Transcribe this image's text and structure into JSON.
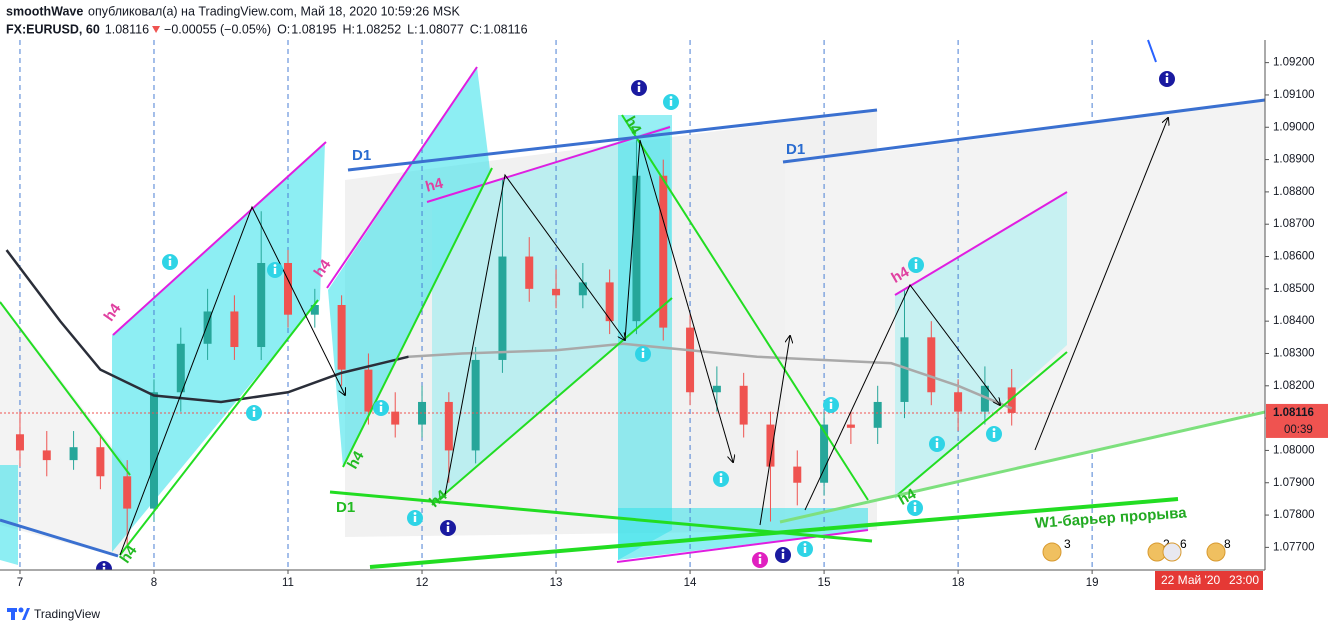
{
  "chart_data": {
    "type": "candlestick",
    "title": "smoothWave",
    "subtitle": "опубликовал(а) на TradingView.com, Май 18, 2020 10:59:26 MSK",
    "symbol": "FX:EURUSD, 60",
    "header_price": 1.08116,
    "change": "−0.00055 (−0.05%)",
    "ohlc": [
      {
        "label": "O:",
        "value": 1.08195
      },
      {
        "label": "H:",
        "value": 1.08252
      },
      {
        "label": "L:",
        "value": 1.08077
      },
      {
        "label": "C:",
        "value": 1.08116
      }
    ],
    "up_color": "#26a69a",
    "down_color": "#ef5350",
    "x": [
      0,
      0.2,
      0.4,
      0.6,
      0.8,
      1,
      1.2,
      1.4,
      1.6,
      1.8,
      2,
      2.2,
      2.4,
      2.6,
      2.8,
      3,
      3.2,
      3.4,
      3.6,
      3.8,
      4,
      4.2,
      4.4,
      4.6,
      4.8,
      5,
      5.2,
      5.4,
      5.6,
      5.8,
      6,
      6.2,
      6.4,
      6.6,
      6.8,
      7,
      7.2,
      7.4
    ],
    "open": [
      1.0805,
      1.08,
      1.0797,
      1.0801,
      1.0792,
      1.0782,
      1.0818,
      1.0833,
      1.0843,
      1.0832,
      1.0858,
      1.0842,
      1.0845,
      1.0825,
      1.0812,
      1.0808,
      1.0815,
      1.08,
      1.0828,
      1.086,
      1.085,
      1.0848,
      1.0852,
      1.084,
      1.0885,
      1.0838,
      1.0818,
      1.082,
      1.0808,
      1.0795,
      1.079,
      1.0808,
      1.0807,
      1.0815,
      1.0835,
      1.0818,
      1.0812,
      1.08195
    ],
    "high": [
      1.0812,
      1.0806,
      1.0806,
      1.0805,
      1.0797,
      1.0822,
      1.0838,
      1.085,
      1.0848,
      1.0874,
      1.0862,
      1.085,
      1.0848,
      1.083,
      1.0818,
      1.082,
      1.0818,
      1.0832,
      1.0884,
      1.0866,
      1.0856,
      1.0858,
      1.0856,
      1.0896,
      1.089,
      1.0842,
      1.0826,
      1.0824,
      1.0812,
      1.08,
      1.0812,
      1.0812,
      1.082,
      1.085,
      1.084,
      1.0822,
      1.0826,
      1.08252
    ],
    "low": [
      1.0795,
      1.0792,
      1.0794,
      1.0788,
      1.077,
      1.0778,
      1.0812,
      1.0828,
      1.0828,
      1.0828,
      1.0838,
      1.0838,
      1.082,
      1.0808,
      1.0804,
      1.0804,
      1.079,
      1.0796,
      1.0824,
      1.0846,
      1.0844,
      1.0844,
      1.0836,
      1.0836,
      1.0834,
      1.0814,
      1.0812,
      1.0804,
      1.0778,
      1.0783,
      1.0786,
      1.0802,
      1.0802,
      1.081,
      1.0814,
      1.0806,
      1.0808,
      1.08077
    ],
    "close": [
      1.08,
      1.0797,
      1.0801,
      1.0792,
      1.0782,
      1.0818,
      1.0833,
      1.0843,
      1.0832,
      1.0858,
      1.0842,
      1.0845,
      1.0825,
      1.0812,
      1.0808,
      1.0815,
      1.08,
      1.0828,
      1.086,
      1.085,
      1.0848,
      1.0852,
      1.084,
      1.0885,
      1.0838,
      1.0818,
      1.082,
      1.0808,
      1.0795,
      1.079,
      1.0808,
      1.0807,
      1.0815,
      1.0835,
      1.0818,
      1.0812,
      1.082,
      1.08116
    ],
    "overlays": [
      {
        "color": "#2a2e39",
        "x": [
          -0.1,
          0.3,
          0.6,
          1,
          1.5,
          2,
          2.4,
          2.9
        ],
        "values": [
          1.0862,
          1.084,
          1.0825,
          1.0817,
          1.0815,
          1.0818,
          1.0824,
          1.0829
        ]
      },
      {
        "color": "#a9a9a9",
        "x": [
          2.9,
          3.3,
          4,
          4.5,
          5,
          5.5,
          6,
          6.5,
          7,
          7.4
        ],
        "values": [
          1.0829,
          1.083,
          1.0831,
          1.0833,
          1.0831,
          1.0829,
          1.0828,
          1.0827,
          1.082,
          1.0813
        ]
      }
    ],
    "xlim": [
      -0.149,
      9.29
    ],
    "xticks": [
      {
        "value": 0,
        "label": "7"
      },
      {
        "value": 1,
        "label": "8"
      },
      {
        "value": 2,
        "label": "11"
      },
      {
        "value": 3,
        "label": "12"
      },
      {
        "value": 4,
        "label": "13"
      },
      {
        "value": 5,
        "label": "14"
      },
      {
        "value": 6,
        "label": "15"
      },
      {
        "value": 7,
        "label": "18"
      },
      {
        "value": 8,
        "label": "19"
      }
    ],
    "ylim": [
      1.0763,
      1.0927
    ],
    "yticks": [
      {
        "value": 1.077,
        "label": "1.07700"
      },
      {
        "value": 1.078,
        "label": "1.07800"
      },
      {
        "value": 1.079,
        "label": "1.07900"
      },
      {
        "value": 1.08,
        "label": "1.08000"
      },
      {
        "value": 1.081,
        "label": "1.08100"
      },
      {
        "value": 1.082,
        "label": "1.08200"
      },
      {
        "value": 1.083,
        "label": "1.08300"
      },
      {
        "value": 1.084,
        "label": "1.08400"
      },
      {
        "value": 1.085,
        "label": "1.08500"
      },
      {
        "value": 1.086,
        "label": "1.08600"
      },
      {
        "value": 1.087,
        "label": "1.08700"
      },
      {
        "value": 1.088,
        "label": "1.08800"
      },
      {
        "value": 1.089,
        "label": "1.08900"
      },
      {
        "value": 1.09,
        "label": "1.09000"
      },
      {
        "value": 1.091,
        "label": "1.09100"
      },
      {
        "value": 1.092,
        "label": "1.09200"
      }
    ],
    "last_price": 1.08116,
    "countdown": "00:39",
    "cursor_date": "22 Май '20",
    "cursor_time": "23:00",
    "annotations": [
      "h4",
      "D1",
      "D1",
      "D1",
      "h4",
      "h4",
      "h4",
      "h4",
      "h4",
      "h4",
      "h4",
      "h4",
      "W1-барьер прорыва"
    ],
    "event_counts": [
      3,
      2,
      6,
      8
    ],
    "footer": "TradingView"
  }
}
